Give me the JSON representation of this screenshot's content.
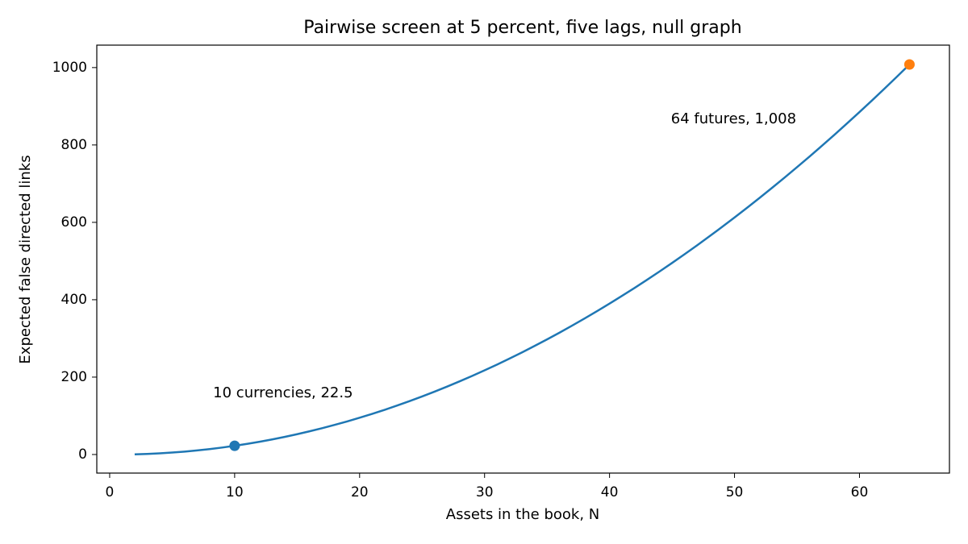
{
  "chart_data": {
    "type": "line",
    "title": "Pairwise screen at 5 percent, five lags, null graph",
    "xlabel": "Assets in the book, N",
    "ylabel": "Expected false directed links",
    "x": [
      2,
      3,
      4,
      5,
      6,
      7,
      8,
      9,
      10,
      11,
      12,
      13,
      14,
      15,
      16,
      17,
      18,
      19,
      20,
      21,
      22,
      23,
      24,
      25,
      26,
      27,
      28,
      29,
      30,
      31,
      32,
      33,
      34,
      35,
      36,
      37,
      38,
      39,
      40,
      41,
      42,
      43,
      44,
      45,
      46,
      47,
      48,
      49,
      50,
      51,
      52,
      53,
      54,
      55,
      56,
      57,
      58,
      59,
      60,
      61,
      62,
      63,
      64
    ],
    "series": [
      {
        "color": "#1f77b4",
        "values": [
          0.5,
          1.5,
          3,
          5,
          7.5,
          10.5,
          14,
          18,
          22.5,
          27.5,
          33,
          39,
          45.5,
          52.5,
          60,
          68,
          76.5,
          85.5,
          95,
          105,
          115.5,
          126.5,
          138,
          150,
          162.5,
          175.5,
          189,
          203,
          217.5,
          232.5,
          248,
          264,
          280.5,
          297.5,
          315,
          333,
          351.5,
          370.5,
          390,
          410,
          430.5,
          451.5,
          473,
          495,
          517.5,
          540.5,
          564,
          588,
          612.5,
          637.5,
          663,
          689,
          715.5,
          742.5,
          770,
          798,
          826.5,
          855.5,
          885,
          915,
          945.5,
          976.5,
          1008
        ]
      }
    ],
    "points": [
      {
        "x": 10,
        "value": 22.5,
        "color": "#1f77b4",
        "label": "10 currencies, 22.5"
      },
      {
        "x": 64,
        "value": 1008,
        "color": "#ff7f0e",
        "label": "64 futures, 1,008"
      }
    ],
    "xlim": [
      -1.03,
      67.2
    ],
    "ylim": [
      -48,
      1058
    ],
    "xticks": [
      0,
      10,
      20,
      30,
      40,
      50,
      60
    ],
    "yticks": [
      0,
      200,
      400,
      600,
      800,
      1000
    ]
  }
}
